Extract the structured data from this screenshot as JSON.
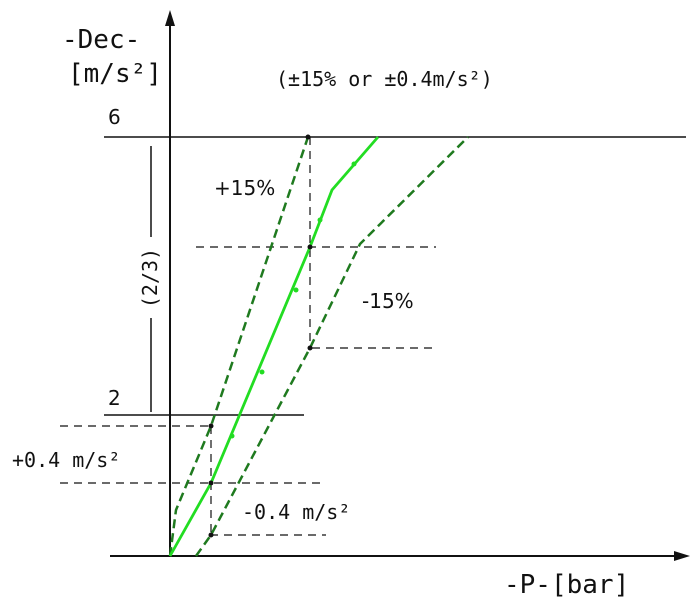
{
  "y_axis": {
    "label": "-Dec-",
    "unit": "[m/s²]"
  },
  "x_axis": {
    "label": "-P-[bar]"
  },
  "tolerance_note": "(±15% or ±0.4m/s²)",
  "y_ticks": [
    "6",
    "2"
  ],
  "range_label": "(2/3)",
  "band_labels": {
    "plus_pct": "+15%",
    "minus_pct": "-15%",
    "plus_abs": "+0.4 m/s²",
    "minus_abs": "-0.4 m/s²"
  },
  "colors": {
    "nominal_curve": "#22dd22",
    "tolerance_curves": "#1f7a1f",
    "axes": "#111111",
    "guides": "#111111"
  }
}
